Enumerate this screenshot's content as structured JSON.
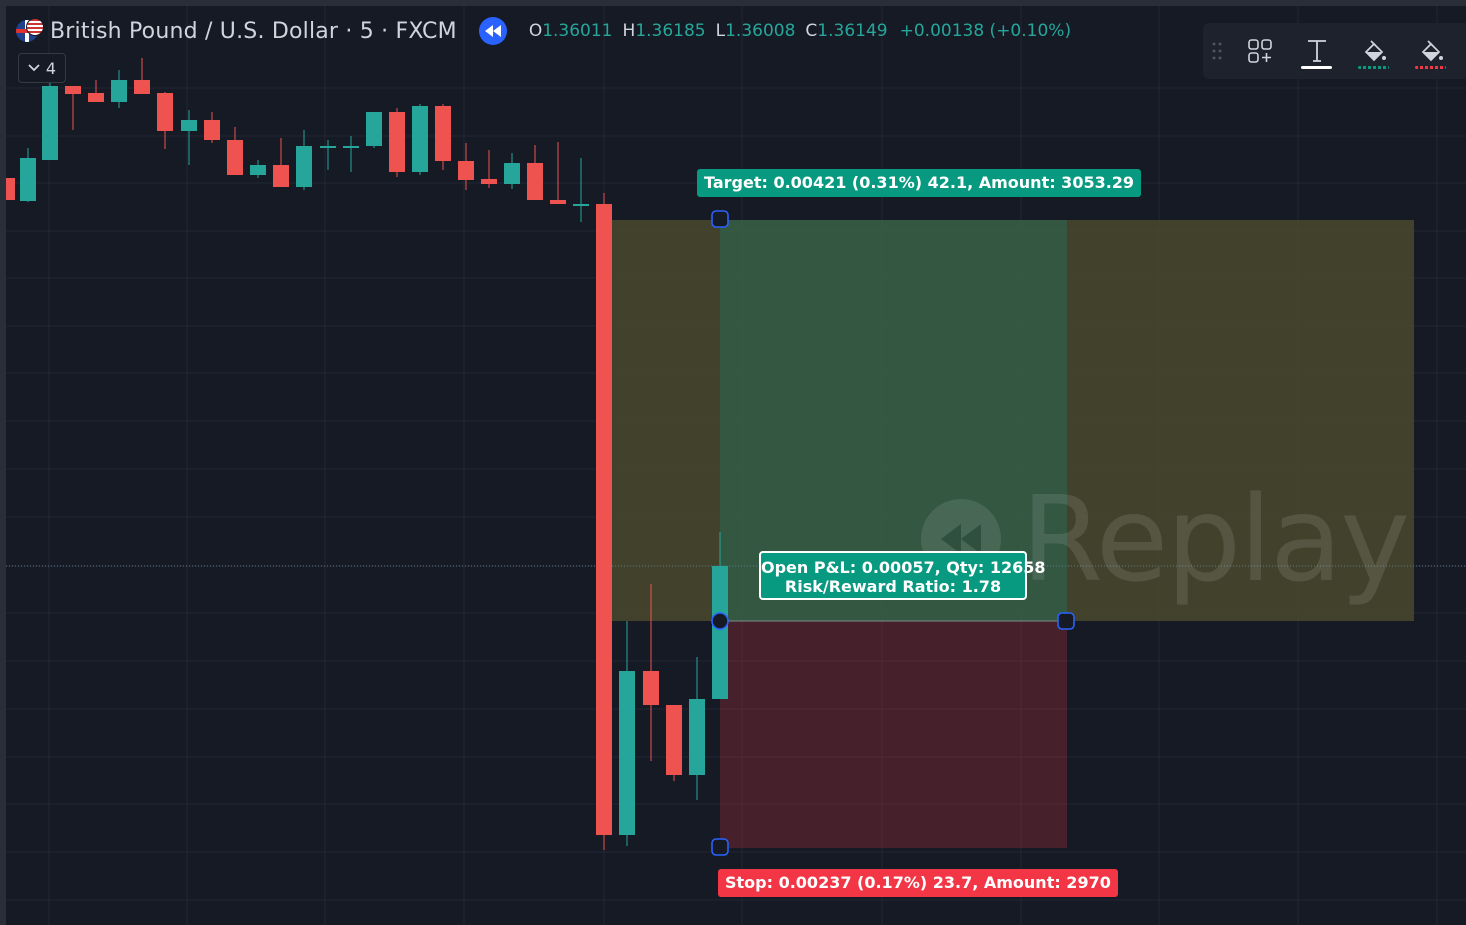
{
  "header": {
    "symbol": "British Pound / U.S. Dollar · 5 · FXCM",
    "ohlc": {
      "open_label": "O",
      "open": "1.36011",
      "high_label": "H",
      "high": "1.36185",
      "low_label": "L",
      "low": "1.36008",
      "close_label": "C",
      "close": "1.36149",
      "change": "+0.00138 (+0.10%)"
    }
  },
  "collapse_button": {
    "count": "4"
  },
  "floating_toolbar": {
    "icons": [
      "drag-handle-icon",
      "templates-icon",
      "text-icon",
      "fill-color-profit-icon",
      "fill-color-loss-icon"
    ],
    "colors": {
      "text_underline": "#ffffff",
      "profit": "#089981",
      "loss": "#f23645"
    }
  },
  "position_tool": {
    "target_label": "Target: 0.00421 (0.31%) 42.1, Amount: 3053.29",
    "stop_label": "Stop: 0.00237 (0.17%) 23.7, Amount: 2970",
    "pnl_line": "Open P&L: 0.00057, Qty: 12658",
    "rr_line": "Risk/Reward Ratio: 1.78"
  },
  "watermark": {
    "text": "Replay"
  },
  "colors": {
    "background": "#161a25",
    "grid": "#232733",
    "up": "#26a69a",
    "down": "#ef5350",
    "profit_zone": "#089981",
    "loss_zone": "#f23645",
    "accent": "#2962ff"
  }
}
